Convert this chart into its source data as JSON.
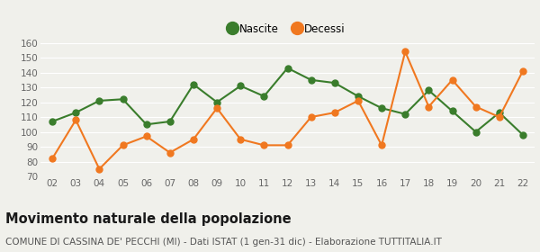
{
  "years": [
    "02",
    "03",
    "04",
    "05",
    "06",
    "07",
    "08",
    "09",
    "10",
    "11",
    "12",
    "13",
    "14",
    "15",
    "16",
    "17",
    "18",
    "19",
    "20",
    "21",
    "22"
  ],
  "nascite": [
    107,
    113,
    121,
    122,
    105,
    107,
    132,
    120,
    131,
    124,
    143,
    135,
    133,
    124,
    116,
    112,
    128,
    114,
    100,
    113,
    98
  ],
  "decessi": [
    82,
    108,
    75,
    91,
    97,
    86,
    95,
    116,
    95,
    91,
    91,
    110,
    113,
    121,
    91,
    154,
    117,
    135,
    117,
    110,
    141
  ],
  "nascite_color": "#3a7d2c",
  "decessi_color": "#f07820",
  "background_color": "#f0f0eb",
  "grid_color": "#ffffff",
  "ylim": [
    70,
    160
  ],
  "yticks": [
    70,
    80,
    90,
    100,
    110,
    120,
    130,
    140,
    150,
    160
  ],
  "title": "Movimento naturale della popolazione",
  "subtitle": "COMUNE DI CASSINA DE' PECCHI (MI) - Dati ISTAT (1 gen-31 dic) - Elaborazione TUTTITALIA.IT",
  "legend_nascite": "Nascite",
  "legend_decessi": "Decessi",
  "title_fontsize": 10.5,
  "subtitle_fontsize": 7.5,
  "tick_fontsize": 7.5,
  "legend_fontsize": 8.5,
  "marker_size": 5,
  "line_width": 1.5
}
